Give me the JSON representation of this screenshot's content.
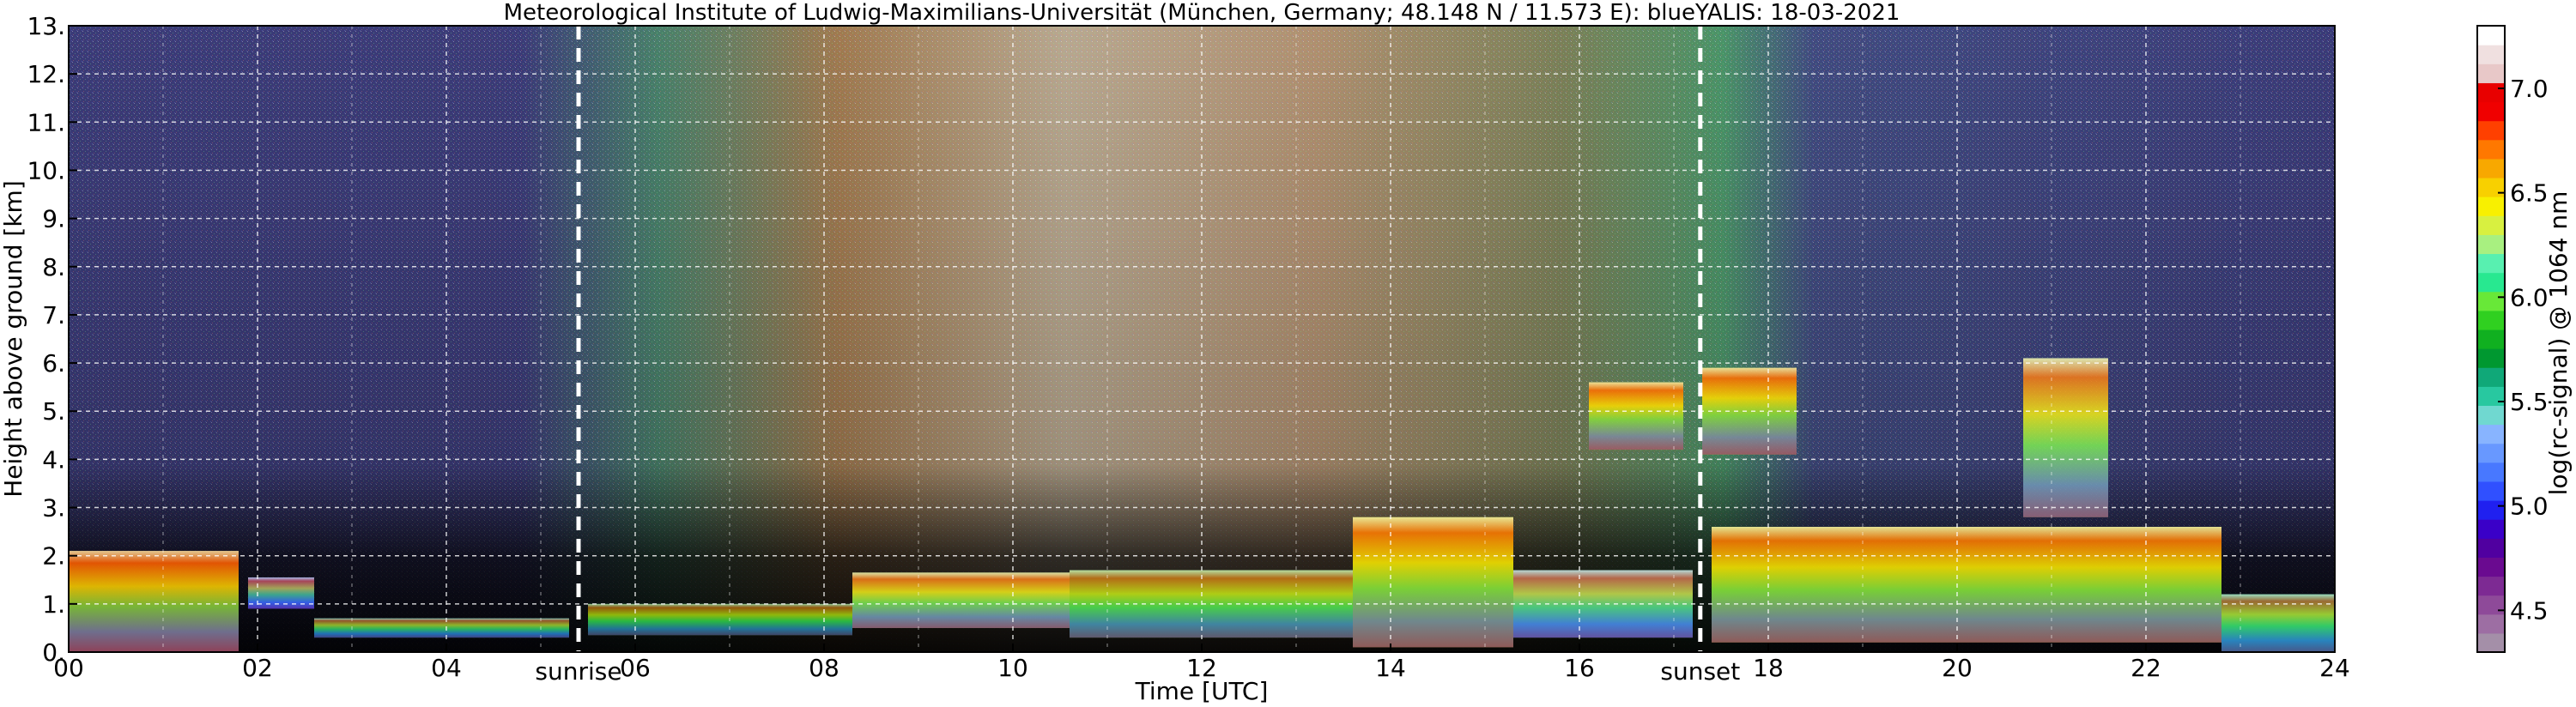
{
  "chart_data": {
    "type": "heatmap",
    "title": "Meteorological Institute of Ludwig-Maximilians-Universität (München, Germany; 48.148 N / 11.573 E):     blueYALIS: 18-03-2021",
    "xlabel": "Time [UTC]",
    "ylabel": "Height above ground [km]",
    "xlim": [
      0,
      24
    ],
    "ylim": [
      0,
      13
    ],
    "x_ticks": [
      "00",
      "02",
      "04",
      "06",
      "08",
      "10",
      "12",
      "14",
      "16",
      "18",
      "20",
      "22",
      "24"
    ],
    "y_ticks": [
      "0.",
      "1.",
      "2.",
      "3.",
      "4.",
      "5.",
      "6.",
      "7.",
      "8.",
      "9.",
      "10.",
      "11.",
      "12.",
      "13."
    ],
    "grid": true,
    "colorbar": {
      "label": "log(rc-signal) @ 1064 nm",
      "range": [
        4.3,
        7.3
      ],
      "ticks": [
        {
          "value": 4.5,
          "label": "4.5"
        },
        {
          "value": 5.0,
          "label": "5.0"
        },
        {
          "value": 5.5,
          "label": "5.5"
        },
        {
          "value": 6.0,
          "label": "6.0"
        },
        {
          "value": 6.5,
          "label": "6.5"
        },
        {
          "value": 7.0,
          "label": "7.0"
        }
      ],
      "colors": [
        "#a48fa8",
        "#9d6ea3",
        "#8e4a99",
        "#7d2a93",
        "#6a0a90",
        "#5000a0",
        "#3a00c8",
        "#2020f0",
        "#3050ff",
        "#4878ff",
        "#6898ff",
        "#88b4ff",
        "#70d8d0",
        "#28c8a0",
        "#10a878",
        "#009830",
        "#10b020",
        "#30d020",
        "#68e838",
        "#28e890",
        "#58f0b0",
        "#a8f080",
        "#d8f040",
        "#f8f000",
        "#f8d000",
        "#f8a800",
        "#ff7800",
        "#ff4000",
        "#f00000",
        "#e80000",
        "#e8c8c8",
        "#f0e0e0",
        "#ffffff"
      ]
    },
    "annotations": [
      {
        "label": "sunrise",
        "x": 5.4
      },
      {
        "label": "sunset",
        "x": 17.28
      }
    ],
    "features": [
      {
        "t0": 0.0,
        "t1": 1.8,
        "h0": 0.0,
        "h1": 2.1,
        "value": 6.6
      },
      {
        "t0": 1.9,
        "t1": 2.6,
        "h0": 0.9,
        "h1": 1.55,
        "value": 5.2
      },
      {
        "t0": 2.6,
        "t1": 5.3,
        "h0": 0.3,
        "h1": 0.7,
        "value": 5.6
      },
      {
        "t0": 5.5,
        "t1": 8.3,
        "h0": 0.35,
        "h1": 1.0,
        "value": 5.8
      },
      {
        "t0": 8.3,
        "t1": 10.6,
        "h0": 0.5,
        "h1": 1.65,
        "value": 6.3
      },
      {
        "t0": 10.6,
        "t1": 13.6,
        "h0": 0.3,
        "h1": 1.7,
        "value": 6.0
      },
      {
        "t0": 13.6,
        "t1": 15.3,
        "h0": 0.1,
        "h1": 2.8,
        "value": 6.4
      },
      {
        "t0": 15.3,
        "t1": 17.2,
        "h0": 0.3,
        "h1": 1.7,
        "value": 5.4
      },
      {
        "t0": 16.1,
        "t1": 17.1,
        "h0": 4.2,
        "h1": 5.6,
        "value": 6.5
      },
      {
        "t0": 17.3,
        "t1": 18.3,
        "h0": 4.1,
        "h1": 5.9,
        "value": 6.5
      },
      {
        "t0": 20.7,
        "t1": 21.6,
        "h0": 2.8,
        "h1": 6.1,
        "value": 6.3
      },
      {
        "t0": 17.4,
        "t1": 22.8,
        "h0": 0.2,
        "h1": 2.6,
        "value": 6.4
      },
      {
        "t0": 22.8,
        "t1": 24.0,
        "h0": 0.0,
        "h1": 1.2,
        "value": 6.1
      }
    ]
  }
}
